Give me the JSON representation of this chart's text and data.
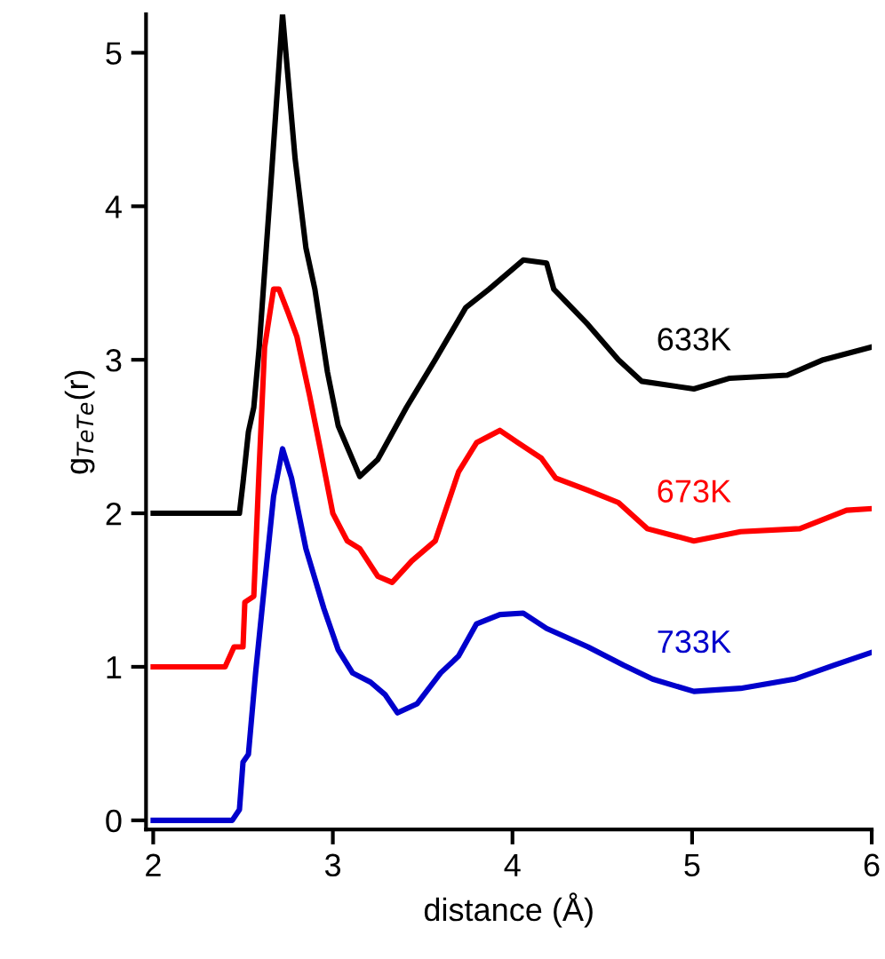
{
  "chart_data": {
    "type": "line",
    "xlabel": "distance (Å)",
    "ylabel": "g$_{TeTe}$(r)",
    "xlim": [
      1.96,
      6.0
    ],
    "ylim": [
      -0.06,
      5.25
    ],
    "xticks": [
      2,
      3,
      4,
      5,
      6
    ],
    "yticks": [
      0,
      1,
      2,
      3,
      4,
      5
    ],
    "grid": false,
    "legend": false,
    "line_style": "solid",
    "marker": "none",
    "series": [
      {
        "name": "633K",
        "color": "#000000",
        "x": [
          2.0,
          2.48,
          2.5,
          2.53,
          2.56,
          2.59,
          2.66,
          2.72,
          2.79,
          2.85,
          2.9,
          2.97,
          3.03,
          3.15,
          3.25,
          3.41,
          3.57,
          3.74,
          3.87,
          4.06,
          4.19,
          4.23,
          4.42,
          4.59,
          4.72,
          5.01,
          5.21,
          5.53,
          5.73,
          5.99
        ],
        "values": [
          2.0,
          2.0,
          2.2,
          2.53,
          2.69,
          3.08,
          4.23,
          5.25,
          4.31,
          3.73,
          3.46,
          2.92,
          2.57,
          2.24,
          2.35,
          2.69,
          3.0,
          3.34,
          3.46,
          3.65,
          3.63,
          3.46,
          3.23,
          3.0,
          2.86,
          2.81,
          2.88,
          2.9,
          3.0,
          3.08
        ]
      },
      {
        "name": "673K",
        "color": "#ff0000",
        "x": [
          2.0,
          2.4,
          2.45,
          2.5,
          2.51,
          2.56,
          2.59,
          2.62,
          2.67,
          2.7,
          2.75,
          2.8,
          2.87,
          2.93,
          3.0,
          3.08,
          3.15,
          3.25,
          3.33,
          3.44,
          3.57,
          3.7,
          3.8,
          3.93,
          4.03,
          4.16,
          4.24,
          4.42,
          4.59,
          4.75,
          5.01,
          5.27,
          5.6,
          5.86,
          5.99
        ],
        "values": [
          1.0,
          1.0,
          1.13,
          1.13,
          1.42,
          1.46,
          2.3,
          3.08,
          3.46,
          3.46,
          3.31,
          3.15,
          2.77,
          2.42,
          2.0,
          1.82,
          1.77,
          1.59,
          1.55,
          1.69,
          1.82,
          2.27,
          2.46,
          2.54,
          2.46,
          2.36,
          2.23,
          2.15,
          2.07,
          1.9,
          1.82,
          1.88,
          1.9,
          2.02,
          2.03
        ]
      },
      {
        "name": "733K",
        "color": "#0000cc",
        "x": [
          2.0,
          2.44,
          2.48,
          2.5,
          2.53,
          2.57,
          2.62,
          2.67,
          2.72,
          2.77,
          2.85,
          2.95,
          3.03,
          3.11,
          3.21,
          3.29,
          3.36,
          3.47,
          3.6,
          3.7,
          3.8,
          3.93,
          4.06,
          4.19,
          4.42,
          4.62,
          4.78,
          5.01,
          5.27,
          5.57,
          5.79,
          5.99
        ],
        "values": [
          0.0,
          0.0,
          0.07,
          0.38,
          0.43,
          0.96,
          1.54,
          2.11,
          2.42,
          2.23,
          1.77,
          1.38,
          1.11,
          0.96,
          0.9,
          0.82,
          0.7,
          0.76,
          0.96,
          1.07,
          1.28,
          1.34,
          1.35,
          1.25,
          1.13,
          1.01,
          0.92,
          0.84,
          0.86,
          0.92,
          1.01,
          1.09
        ]
      }
    ]
  }
}
